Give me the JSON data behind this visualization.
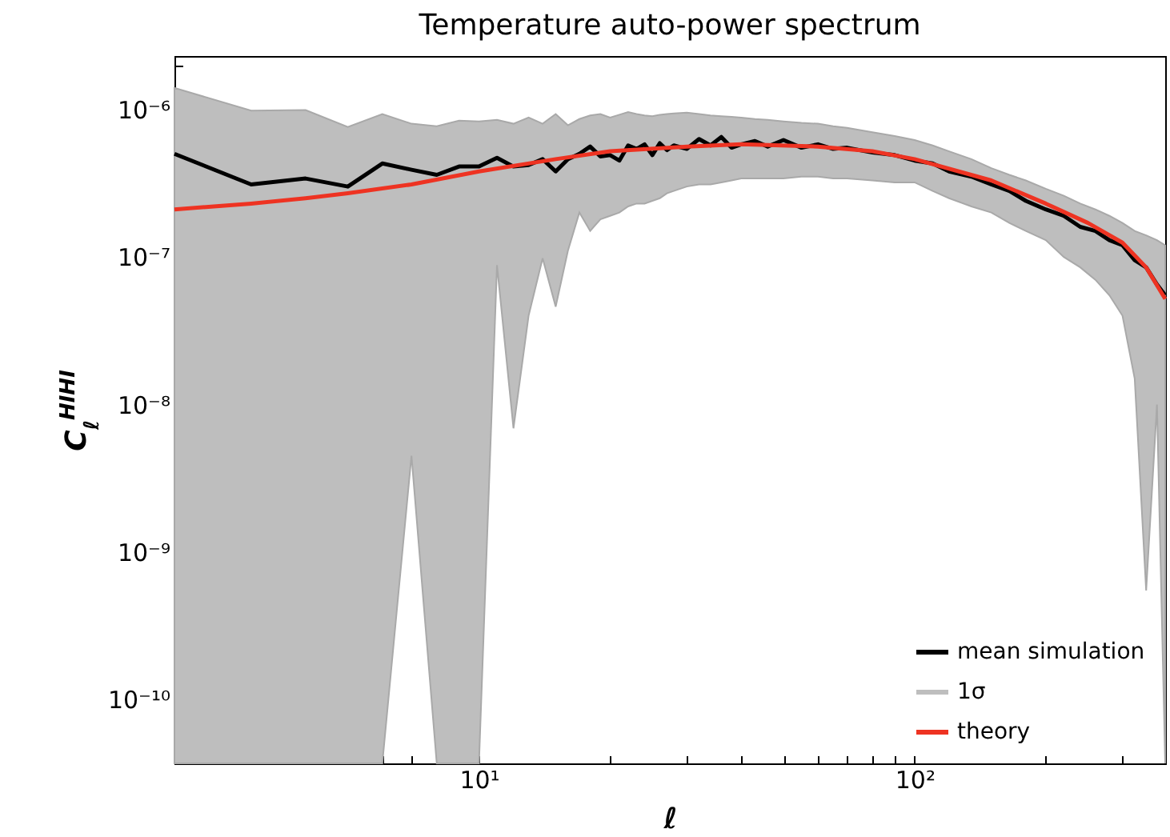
{
  "chart_data": {
    "type": "line",
    "title": "Temperature auto-power spectrum",
    "xlabel": "ℓ",
    "ylabel": "C$_{ℓ}$$^{HIHI}$",
    "log": "xy",
    "grid": false,
    "legend": "bottom right",
    "marker": "none",
    "line_style": "solid",
    "xlim": [
      2,
      376
    ],
    "xticks": [
      {
        "value": 2,
        "label": null
      },
      {
        "value": 3,
        "label": null
      },
      {
        "value": 4,
        "label": null
      },
      {
        "value": 5,
        "label": null
      },
      {
        "value": 6,
        "label": null
      },
      {
        "value": 7,
        "label": null
      },
      {
        "value": 8,
        "label": null
      },
      {
        "value": 9,
        "label": null
      },
      {
        "value": 10,
        "label": "10¹"
      },
      {
        "value": 20,
        "label": null
      },
      {
        "value": 30,
        "label": null
      },
      {
        "value": 40,
        "label": null
      },
      {
        "value": 50,
        "label": null
      },
      {
        "value": 60,
        "label": null
      },
      {
        "value": 70,
        "label": null
      },
      {
        "value": 80,
        "label": null
      },
      {
        "value": 90,
        "label": null
      },
      {
        "value": 100,
        "label": "10²"
      },
      {
        "value": 200,
        "label": null
      },
      {
        "value": 300,
        "label": null
      }
    ],
    "ylim": [
      3.7e-11,
      2.3e-06
    ],
    "yticks": [
      {
        "value": 4e-11,
        "label": null
      },
      {
        "value": 5e-11,
        "label": null
      },
      {
        "value": 6e-11,
        "label": null
      },
      {
        "value": 7e-11,
        "label": null
      },
      {
        "value": 8e-11,
        "label": null
      },
      {
        "value": 9e-11,
        "label": null
      },
      {
        "value": 1e-10,
        "label": "10⁻¹⁰"
      },
      {
        "value": 2e-10,
        "label": null
      },
      {
        "value": 3e-10,
        "label": null
      },
      {
        "value": 4e-10,
        "label": null
      },
      {
        "value": 5e-10,
        "label": null
      },
      {
        "value": 6e-10,
        "label": null
      },
      {
        "value": 7e-10,
        "label": null
      },
      {
        "value": 8e-10,
        "label": null
      },
      {
        "value": 9e-10,
        "label": null
      },
      {
        "value": 1e-09,
        "label": "10⁻⁹"
      },
      {
        "value": 2e-09,
        "label": null
      },
      {
        "value": 3e-09,
        "label": null
      },
      {
        "value": 4e-09,
        "label": null
      },
      {
        "value": 5e-09,
        "label": null
      },
      {
        "value": 6e-09,
        "label": null
      },
      {
        "value": 7e-09,
        "label": null
      },
      {
        "value": 8e-09,
        "label": null
      },
      {
        "value": 9e-09,
        "label": null
      },
      {
        "value": 1e-08,
        "label": "10⁻⁸"
      },
      {
        "value": 2e-08,
        "label": null
      },
      {
        "value": 3e-08,
        "label": null
      },
      {
        "value": 4e-08,
        "label": null
      },
      {
        "value": 5e-08,
        "label": null
      },
      {
        "value": 6e-08,
        "label": null
      },
      {
        "value": 7e-08,
        "label": null
      },
      {
        "value": 8e-08,
        "label": null
      },
      {
        "value": 9e-08,
        "label": null
      },
      {
        "value": 1e-07,
        "label": "10⁻⁷"
      },
      {
        "value": 2e-07,
        "label": null
      },
      {
        "value": 3e-07,
        "label": null
      },
      {
        "value": 4e-07,
        "label": null
      },
      {
        "value": 5e-07,
        "label": null
      },
      {
        "value": 6e-07,
        "label": null
      },
      {
        "value": 7e-07,
        "label": null
      },
      {
        "value": 8e-07,
        "label": null
      },
      {
        "value": 9e-07,
        "label": null
      },
      {
        "value": 1e-06,
        "label": "10⁻⁶"
      },
      {
        "value": 2e-06,
        "label": null
      }
    ],
    "series": [
      {
        "name": "mean simulation",
        "type": "line",
        "color": "#000000",
        "x": [
          2,
          3,
          4,
          5,
          6,
          7,
          8,
          9,
          10,
          11,
          12,
          13,
          14,
          15,
          16,
          17,
          18,
          19,
          20,
          21,
          22,
          23,
          24,
          25,
          26,
          27,
          28,
          30,
          32,
          34,
          36,
          38,
          40,
          43,
          46,
          50,
          55,
          60,
          65,
          70,
          80,
          90,
          100,
          110,
          120,
          135,
          150,
          165,
          180,
          200,
          220,
          240,
          260,
          280,
          300,
          320,
          340,
          360,
          376
        ],
        "values": [
          5e-07,
          3.1e-07,
          3.4e-07,
          3e-07,
          4.3e-07,
          3.9e-07,
          3.6e-07,
          4.1e-07,
          4.1e-07,
          4.7e-07,
          4.1e-07,
          4.2e-07,
          4.6e-07,
          3.8e-07,
          4.6e-07,
          5e-07,
          5.6e-07,
          4.8e-07,
          4.9e-07,
          4.5e-07,
          5.7e-07,
          5.4e-07,
          5.8e-07,
          4.9e-07,
          5.9e-07,
          5.3e-07,
          5.7e-07,
          5.4e-07,
          6.3e-07,
          5.7e-07,
          6.5e-07,
          5.5e-07,
          5.8e-07,
          6.1e-07,
          5.6e-07,
          6.2e-07,
          5.5e-07,
          5.8e-07,
          5.4e-07,
          5.5e-07,
          5.1e-07,
          4.9e-07,
          4.5e-07,
          4.3e-07,
          3.8e-07,
          3.5e-07,
          3.1e-07,
          2.8e-07,
          2.4e-07,
          2.1e-07,
          1.9e-07,
          1.6e-07,
          1.5e-07,
          1.3e-07,
          1.2e-07,
          9.5e-08,
          8.5e-08,
          6.5e-08,
          5.5e-08
        ],
        "upper": [
          1.4e-06,
          9.8e-07,
          9.9e-07,
          7.6e-07,
          9.3e-07,
          8e-07,
          7.7e-07,
          8.4e-07,
          8.3e-07,
          8.5e-07,
          8e-07,
          8.8e-07,
          8e-07,
          9.3e-07,
          7.8e-07,
          8.6e-07,
          9.1e-07,
          9.3e-07,
          8.8e-07,
          9.2e-07,
          9.6e-07,
          9.3e-07,
          9.1e-07,
          9e-07,
          9.2e-07,
          9.3e-07,
          9.4e-07,
          9.5e-07,
          9.3e-07,
          9.1e-07,
          9e-07,
          8.9e-07,
          8.8e-07,
          8.6e-07,
          8.5e-07,
          8.3e-07,
          8.1e-07,
          8e-07,
          7.7e-07,
          7.5e-07,
          7e-07,
          6.6e-07,
          6.2e-07,
          5.7e-07,
          5.2e-07,
          4.6e-07,
          4e-07,
          3.6e-07,
          3.3e-07,
          2.9e-07,
          2.6e-07,
          2.3e-07,
          2.1e-07,
          1.9e-07,
          1.7e-07,
          1.5e-07,
          1.4e-07,
          1.3e-07,
          1.2e-07
        ],
        "lower": [
          3.7e-11,
          3.7e-11,
          3.7e-11,
          3.7e-11,
          3.7e-11,
          4.5e-09,
          3.7e-11,
          3.7e-11,
          3.7e-11,
          8.8e-08,
          6.9e-09,
          4e-08,
          9.8e-08,
          4.6e-08,
          1.1e-07,
          2e-07,
          1.5e-07,
          1.8e-07,
          1.9e-07,
          2e-07,
          2.2e-07,
          2.3e-07,
          2.3e-07,
          2.4e-07,
          2.5e-07,
          2.7e-07,
          2.8e-07,
          3e-07,
          3.1e-07,
          3.1e-07,
          3.2e-07,
          3.3e-07,
          3.4e-07,
          3.4e-07,
          3.4e-07,
          3.4e-07,
          3.5e-07,
          3.5e-07,
          3.4e-07,
          3.4e-07,
          3.3e-07,
          3.2e-07,
          3.2e-07,
          2.8e-07,
          2.5e-07,
          2.2e-07,
          2e-07,
          1.7e-07,
          1.5e-07,
          1.3e-07,
          1e-07,
          8.5e-08,
          7e-08,
          5.5e-08,
          4e-08,
          1.5e-08,
          5.5e-10,
          1e-08,
          3.7e-11
        ]
      },
      {
        "name": "1σ",
        "type": "area",
        "color": "#bebebe"
      },
      {
        "name": "theory",
        "type": "line",
        "color": "#ee3322",
        "x": [
          2,
          3,
          4,
          5,
          7,
          10,
          15,
          20,
          30,
          40,
          60,
          80,
          100,
          150,
          200,
          250,
          300,
          340,
          376
        ],
        "values": [
          2.1e-07,
          2.3e-07,
          2.5e-07,
          2.7e-07,
          3.1e-07,
          3.8e-07,
          4.6e-07,
          5.2e-07,
          5.6e-07,
          5.8e-07,
          5.6e-07,
          5.2e-07,
          4.6e-07,
          3.3e-07,
          2.3e-07,
          1.7e-07,
          1.25e-07,
          8.5e-08,
          5.2e-08
        ]
      }
    ]
  }
}
